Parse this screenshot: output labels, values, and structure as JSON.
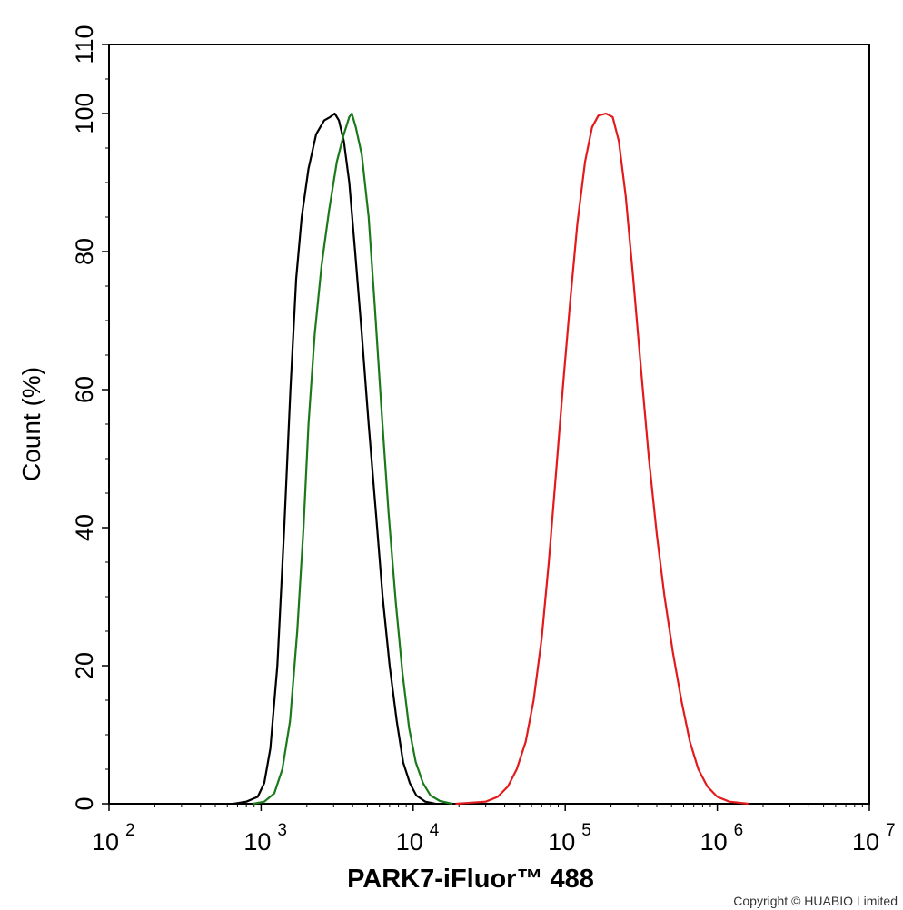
{
  "chart_data": {
    "type": "line",
    "title": "",
    "xlabel": "PARK7-iFluor™ 488",
    "ylabel": "Count  (%)",
    "xscale": "log",
    "xlim": [
      100,
      10000000
    ],
    "ylim": [
      0,
      110
    ],
    "x_ticks": [
      {
        "base": "10",
        "exp": "2"
      },
      {
        "base": "10",
        "exp": "3"
      },
      {
        "base": "10",
        "exp": "4"
      },
      {
        "base": "10",
        "exp": "5"
      },
      {
        "base": "10",
        "exp": "6"
      },
      {
        "base": "10",
        "exp": "7"
      }
    ],
    "y_ticks": [
      "0",
      "20",
      "40",
      "60",
      "80",
      "100",
      "110"
    ],
    "grid": false,
    "legend": false,
    "series": [
      {
        "color": "#000000",
        "points": [
          [
            660,
            0
          ],
          [
            800,
            0.3
          ],
          [
            950,
            1
          ],
          [
            1050,
            3
          ],
          [
            1150,
            8
          ],
          [
            1280,
            20
          ],
          [
            1420,
            40
          ],
          [
            1560,
            60
          ],
          [
            1700,
            76
          ],
          [
            1850,
            85
          ],
          [
            2050,
            92
          ],
          [
            2300,
            97
          ],
          [
            2600,
            99
          ],
          [
            2850,
            99.5
          ],
          [
            3050,
            100
          ],
          [
            3250,
            99
          ],
          [
            3500,
            96
          ],
          [
            3800,
            90
          ],
          [
            4150,
            80
          ],
          [
            4600,
            68
          ],
          [
            5100,
            55
          ],
          [
            5700,
            42
          ],
          [
            6300,
            30
          ],
          [
            7000,
            20
          ],
          [
            7800,
            12
          ],
          [
            8600,
            6
          ],
          [
            9500,
            3
          ],
          [
            10500,
            1.2
          ],
          [
            12000,
            0.3
          ],
          [
            14000,
            0
          ]
        ]
      },
      {
        "color": "#1a7a1a",
        "points": [
          [
            890,
            0
          ],
          [
            1050,
            0.3
          ],
          [
            1220,
            1.5
          ],
          [
            1380,
            5
          ],
          [
            1550,
            12
          ],
          [
            1730,
            25
          ],
          [
            1900,
            40
          ],
          [
            2050,
            55
          ],
          [
            2250,
            68
          ],
          [
            2500,
            78
          ],
          [
            2800,
            86
          ],
          [
            3150,
            93
          ],
          [
            3500,
            97
          ],
          [
            3800,
            99.5
          ],
          [
            3950,
            100
          ],
          [
            4200,
            98
          ],
          [
            4600,
            94
          ],
          [
            5100,
            85
          ],
          [
            5600,
            72
          ],
          [
            6200,
            57
          ],
          [
            6900,
            42
          ],
          [
            7700,
            29
          ],
          [
            8500,
            19
          ],
          [
            9400,
            11
          ],
          [
            10400,
            6
          ],
          [
            11600,
            3
          ],
          [
            13000,
            1.2
          ],
          [
            15000,
            0.4
          ],
          [
            18000,
            0
          ]
        ]
      },
      {
        "color": "#e31a1c",
        "points": [
          [
            19000,
            0
          ],
          [
            30000,
            0.3
          ],
          [
            36000,
            1
          ],
          [
            42000,
            2.5
          ],
          [
            48000,
            5
          ],
          [
            55000,
            9
          ],
          [
            62000,
            15
          ],
          [
            70000,
            24
          ],
          [
            78000,
            35
          ],
          [
            87000,
            48
          ],
          [
            97000,
            61
          ],
          [
            108000,
            73
          ],
          [
            120000,
            84
          ],
          [
            135000,
            93
          ],
          [
            150000,
            98
          ],
          [
            165000,
            99.7
          ],
          [
            185000,
            100
          ],
          [
            205000,
            99.5
          ],
          [
            225000,
            96
          ],
          [
            250000,
            88
          ],
          [
            280000,
            76
          ],
          [
            315000,
            63
          ],
          [
            355000,
            50
          ],
          [
            400000,
            39
          ],
          [
            450000,
            30
          ],
          [
            510000,
            22
          ],
          [
            580000,
            15
          ],
          [
            660000,
            9
          ],
          [
            750000,
            5
          ],
          [
            860000,
            2.5
          ],
          [
            1000000,
            1
          ],
          [
            1200000,
            0.3
          ],
          [
            1600000,
            0
          ]
        ]
      }
    ]
  },
  "footer": {
    "copyright": "Copyright © HUABIO Limited"
  }
}
